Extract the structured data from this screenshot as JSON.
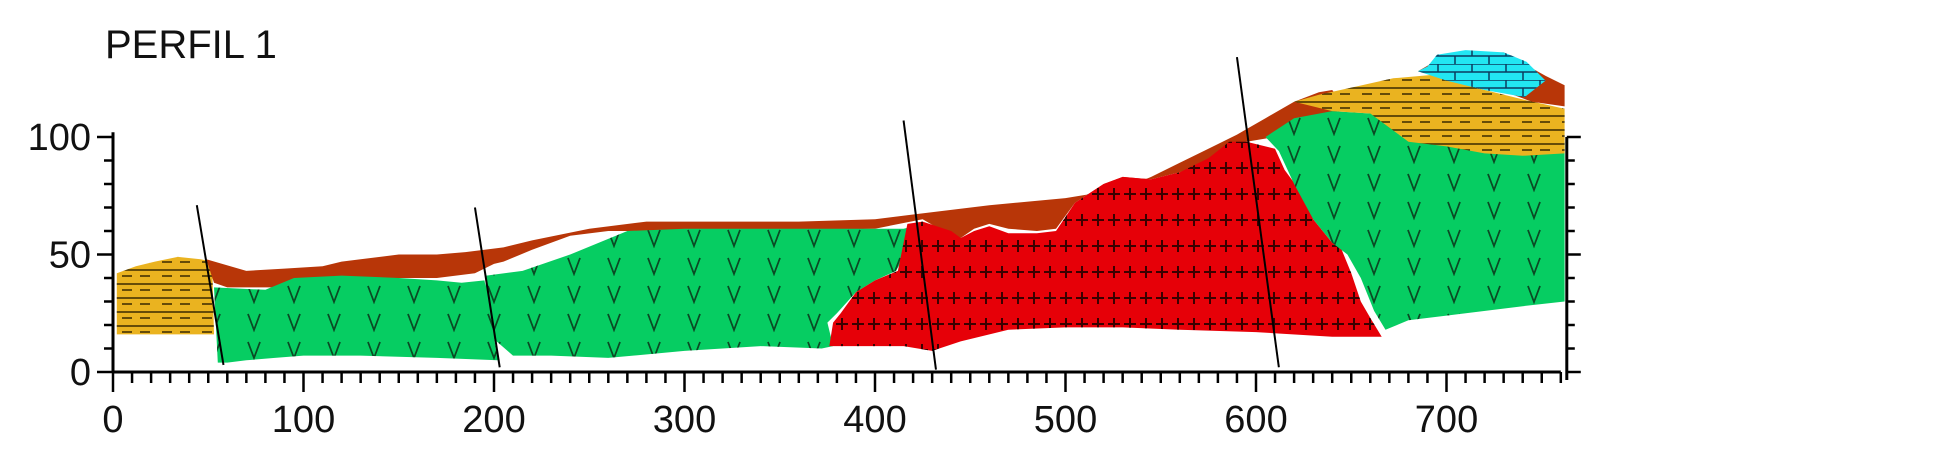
{
  "title": "PERFIL 1",
  "axes": {
    "x": {
      "min": 0,
      "max": 760,
      "major_step": 100,
      "minor_step": 10,
      "tick_labels": [
        "0",
        "100",
        "200",
        "300",
        "400",
        "500",
        "600",
        "700"
      ]
    },
    "y": {
      "min": 0,
      "max": 100,
      "major_step": 50,
      "minor_step": 10,
      "tick_labels": [
        "0",
        "50",
        "100"
      ]
    }
  },
  "colors": {
    "regolith": "#b83608",
    "green_volcanic": "#06cd62",
    "red_intrusive": "#e60008",
    "yellow_sediment": "#eab320",
    "cyan_limestone": "#22e6f2",
    "fault_line": "#000000"
  },
  "units": [
    {
      "id": "yellow-left",
      "pattern": "dashes",
      "fill": "#eab320",
      "polygon": [
        [
          2,
          42
        ],
        [
          12,
          45
        ],
        [
          22,
          47
        ],
        [
          34,
          49
        ],
        [
          46,
          48
        ],
        [
          52,
          47
        ],
        [
          53,
          16
        ],
        [
          2,
          16
        ]
      ]
    },
    {
      "id": "regolith",
      "pattern": "none",
      "fill": "#b83608",
      "polygon": [
        [
          49,
          48
        ],
        [
          70,
          43
        ],
        [
          90,
          44
        ],
        [
          110,
          45
        ],
        [
          120,
          47
        ],
        [
          130,
          48
        ],
        [
          150,
          50
        ],
        [
          170,
          50
        ],
        [
          185,
          51
        ],
        [
          195,
          52
        ],
        [
          205,
          53
        ],
        [
          220,
          56
        ],
        [
          250,
          61
        ],
        [
          280,
          64
        ],
        [
          320,
          64
        ],
        [
          360,
          64
        ],
        [
          400,
          65
        ],
        [
          420,
          67
        ],
        [
          460,
          71
        ],
        [
          500,
          74
        ],
        [
          530,
          78
        ],
        [
          545,
          83
        ],
        [
          560,
          89
        ],
        [
          575,
          95
        ],
        [
          590,
          101
        ],
        [
          605,
          108
        ],
        [
          620,
          115
        ],
        [
          633,
          119
        ],
        [
          640,
          120
        ],
        [
          645,
          115
        ],
        [
          640,
          107
        ],
        [
          630,
          104
        ],
        [
          620,
          103
        ],
        [
          610,
          100
        ],
        [
          595,
          98
        ],
        [
          585,
          96
        ],
        [
          570,
          88
        ],
        [
          560,
          85
        ],
        [
          545,
          82
        ],
        [
          530,
          83
        ],
        [
          520,
          80
        ],
        [
          505,
          72
        ],
        [
          495,
          61
        ],
        [
          485,
          60
        ],
        [
          470,
          61
        ],
        [
          460,
          63
        ],
        [
          452,
          61
        ],
        [
          445,
          57
        ],
        [
          440,
          58
        ],
        [
          425,
          65
        ],
        [
          400,
          61
        ],
        [
          340,
          60
        ],
        [
          300,
          60
        ],
        [
          260,
          60
        ],
        [
          240,
          58
        ],
        [
          220,
          52
        ],
        [
          205,
          47
        ],
        [
          200,
          46
        ],
        [
          190,
          42
        ],
        [
          170,
          40
        ],
        [
          140,
          40
        ],
        [
          120,
          38
        ],
        [
          100,
          36
        ],
        [
          80,
          36
        ],
        [
          60,
          36
        ],
        [
          53,
          38
        ]
      ]
    },
    {
      "id": "green-left",
      "pattern": "v-marks",
      "fill": "#06cd62",
      "polygon": [
        [
          53,
          36
        ],
        [
          80,
          35
        ],
        [
          95,
          40
        ],
        [
          120,
          41
        ],
        [
          150,
          40
        ],
        [
          170,
          39
        ],
        [
          183,
          38
        ],
        [
          195,
          39
        ],
        [
          202,
          5
        ],
        [
          170,
          6
        ],
        [
          130,
          7
        ],
        [
          100,
          7
        ],
        [
          85,
          6
        ],
        [
          70,
          5
        ],
        [
          60,
          4
        ],
        [
          55,
          4
        ]
      ]
    },
    {
      "id": "green-center",
      "pattern": "v-marks",
      "fill": "#06cd62",
      "polygon": [
        [
          196,
          41
        ],
        [
          215,
          43
        ],
        [
          240,
          50
        ],
        [
          270,
          60
        ],
        [
          300,
          61
        ],
        [
          350,
          61
        ],
        [
          380,
          61
        ],
        [
          400,
          61
        ],
        [
          415,
          61
        ],
        [
          425,
          63
        ],
        [
          411,
          43
        ],
        [
          400,
          39
        ],
        [
          390,
          34
        ],
        [
          380,
          25
        ],
        [
          375,
          21
        ],
        [
          378,
          11
        ],
        [
          372,
          10
        ],
        [
          340,
          11
        ],
        [
          300,
          9
        ],
        [
          260,
          6
        ],
        [
          230,
          7
        ],
        [
          210,
          7
        ],
        [
          200,
          14
        ],
        [
          193,
          16
        ]
      ]
    },
    {
      "id": "red-intrusion",
      "pattern": "crosses",
      "fill": "#e60008",
      "polygon": [
        [
          376,
          11
        ],
        [
          378,
          21
        ],
        [
          382,
          25
        ],
        [
          390,
          34
        ],
        [
          400,
          39
        ],
        [
          412,
          43
        ],
        [
          417,
          63
        ],
        [
          425,
          64
        ],
        [
          440,
          60
        ],
        [
          445,
          57
        ],
        [
          452,
          60
        ],
        [
          460,
          62
        ],
        [
          470,
          59
        ],
        [
          485,
          59
        ],
        [
          495,
          60
        ],
        [
          505,
          72
        ],
        [
          520,
          80
        ],
        [
          530,
          83
        ],
        [
          545,
          82
        ],
        [
          560,
          85
        ],
        [
          575,
          91
        ],
        [
          586,
          98
        ],
        [
          595,
          98
        ],
        [
          610,
          95
        ],
        [
          615,
          86
        ],
        [
          625,
          75
        ],
        [
          630,
          65
        ],
        [
          640,
          55
        ],
        [
          645,
          52
        ],
        [
          650,
          42
        ],
        [
          655,
          30
        ],
        [
          660,
          23
        ],
        [
          666,
          15
        ],
        [
          640,
          15
        ],
        [
          600,
          17
        ],
        [
          560,
          18
        ],
        [
          530,
          19
        ],
        [
          500,
          19
        ],
        [
          470,
          18
        ],
        [
          445,
          13
        ],
        [
          430,
          9
        ],
        [
          415,
          11
        ],
        [
          395,
          11
        ]
      ]
    },
    {
      "id": "green-right",
      "pattern": "v-marks",
      "fill": "#06cd62",
      "polygon": [
        [
          605,
          100
        ],
        [
          620,
          108
        ],
        [
          640,
          111
        ],
        [
          660,
          110
        ],
        [
          690,
          107
        ],
        [
          720,
          103
        ],
        [
          748,
          100
        ],
        [
          762,
          98
        ],
        [
          762,
          30
        ],
        [
          740,
          28
        ],
        [
          700,
          24
        ],
        [
          680,
          22
        ],
        [
          668,
          18
        ],
        [
          662,
          26
        ],
        [
          655,
          40
        ],
        [
          648,
          50
        ],
        [
          640,
          55
        ],
        [
          630,
          65
        ],
        [
          620,
          80
        ],
        [
          612,
          94
        ]
      ]
    },
    {
      "id": "yellow-right",
      "pattern": "dashes",
      "fill": "#eab320",
      "polygon": [
        [
          633,
          118
        ],
        [
          650,
          121
        ],
        [
          672,
          125
        ],
        [
          700,
          127
        ],
        [
          715,
          121
        ],
        [
          740,
          116
        ],
        [
          762,
          112
        ],
        [
          762,
          93
        ],
        [
          740,
          92
        ],
        [
          720,
          93
        ],
        [
          700,
          96
        ],
        [
          680,
          98
        ],
        [
          660,
          110
        ],
        [
          640,
          111
        ],
        [
          620,
          115
        ]
      ]
    },
    {
      "id": "regolith-right",
      "pattern": "none",
      "fill": "#b83608",
      "polygon": [
        [
          685,
          128
        ],
        [
          700,
          135
        ],
        [
          730,
          136
        ],
        [
          752,
          126
        ],
        [
          762,
          122
        ],
        [
          762,
          113
        ],
        [
          745,
          115
        ],
        [
          728,
          120
        ]
      ]
    },
    {
      "id": "cyan-cap",
      "pattern": "bricks",
      "fill": "#22e6f2",
      "polygon": [
        [
          690,
          130
        ],
        [
          695,
          135
        ],
        [
          710,
          137
        ],
        [
          730,
          136
        ],
        [
          742,
          132
        ],
        [
          752,
          124
        ],
        [
          741,
          117
        ],
        [
          720,
          120
        ],
        [
          700,
          124
        ],
        [
          685,
          128
        ]
      ]
    }
  ],
  "faults": [
    {
      "id": "fault-1",
      "from": [
        44,
        71
      ],
      "to": [
        58,
        3
      ]
    },
    {
      "id": "fault-2",
      "from": [
        190,
        70
      ],
      "to": [
        203,
        2
      ]
    },
    {
      "id": "fault-3",
      "from": [
        415,
        107
      ],
      "to": [
        432,
        1
      ]
    },
    {
      "id": "fault-4",
      "from": [
        590,
        134
      ],
      "to": [
        612,
        2
      ]
    }
  ]
}
